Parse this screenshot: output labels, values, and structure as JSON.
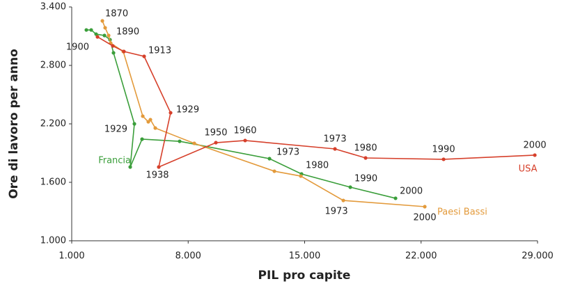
{
  "chart_data": {
    "type": "line",
    "xlabel": "PIL pro capite",
    "ylabel": "Ore di lavoro per anno",
    "xlim": [
      1000,
      29000
    ],
    "ylim": [
      1000,
      3400
    ],
    "xticks": [
      {
        "value": 1000,
        "label": "1.000"
      },
      {
        "value": 8000,
        "label": "8.000"
      },
      {
        "value": 15000,
        "label": "15.000"
      },
      {
        "value": 22000,
        "label": "22.000"
      },
      {
        "value": 29000,
        "label": "29.000"
      }
    ],
    "yticks": [
      {
        "value": 1000,
        "label": "1.000"
      },
      {
        "value": 1600,
        "label": "1.600"
      },
      {
        "value": 2200,
        "label": "2.200"
      },
      {
        "value": 2800,
        "label": "2.800"
      },
      {
        "value": 3400,
        "label": "3.400"
      }
    ],
    "series": [
      {
        "name": "Francia",
        "color": "#3a9e3a",
        "x": [
          1879,
          2172,
          2465,
          2967,
          3302,
          3512,
          4767,
          4516,
          5228,
          7488,
          12888,
          14813,
          17744,
          20465
        ],
        "values": [
          3164,
          3164,
          3121,
          3107,
          3064,
          2929,
          2200,
          1757,
          2043,
          2021,
          1843,
          1686,
          1550,
          1436
        ],
        "point_labels": [
          null,
          null,
          null,
          null,
          null,
          null,
          "1929",
          null,
          null,
          null,
          "1973",
          "1980",
          "1990",
          "2000"
        ]
      },
      {
        "name": "Paesi Bassi",
        "color": "#e39a3b",
        "x": [
          2842,
          3009,
          3218,
          3344,
          4097,
          5270,
          5604,
          5730,
          6023,
          8367,
          13181,
          14771,
          17325,
          22222
        ],
        "values": [
          3257,
          3186,
          3107,
          3029,
          2943,
          2279,
          2221,
          2243,
          2157,
          2000,
          1714,
          1664,
          1414,
          1350
        ],
        "point_labels": [
          "1870",
          "1890",
          null,
          null,
          null,
          null,
          null,
          null,
          null,
          null,
          null,
          null,
          "1973",
          "2000"
        ]
      },
      {
        "name": "USA",
        "color": "#d6402b",
        "x": [
          2549,
          3470,
          4139,
          5353,
          6944,
          6232,
          9665,
          11423,
          16823,
          18665,
          23353,
          28836
        ],
        "values": [
          3093,
          3000,
          2943,
          2893,
          2314,
          1757,
          2007,
          2029,
          1943,
          1850,
          1836,
          1879
        ],
        "point_labels": [
          null,
          "1900",
          null,
          "1913",
          "1929",
          "1938",
          "1950",
          "1960",
          "1973",
          "1980",
          "1990",
          "2000"
        ]
      }
    ]
  }
}
